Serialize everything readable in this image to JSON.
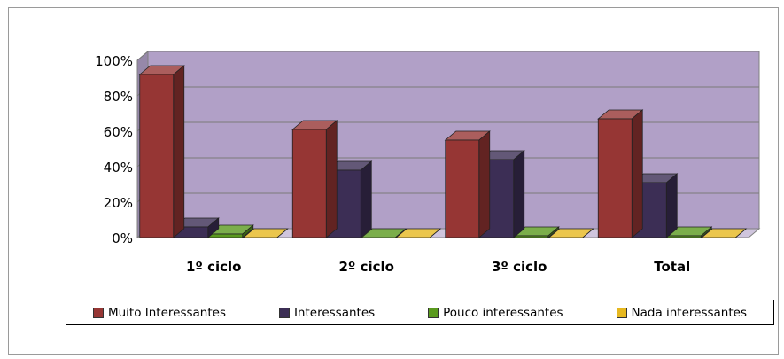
{
  "chart_data": {
    "type": "bar",
    "categories": [
      "1º ciclo",
      "2º ciclo",
      "3º ciclo",
      "Total"
    ],
    "series": [
      {
        "name": "Muito  Interessantes",
        "values": [
          92,
          61,
          55,
          67
        ],
        "color": "#963634"
      },
      {
        "name": "Interessantes",
        "values": [
          6,
          38,
          44,
          31
        ],
        "color": "#3c2e55"
      },
      {
        "name": "Pouco interessantes",
        "values": [
          2,
          0,
          1,
          1
        ],
        "color": "#5a9a1e"
      },
      {
        "name": "Nada interessantes",
        "values": [
          0,
          0,
          0,
          0
        ],
        "color": "#e6b820"
      }
    ],
    "yticks": [
      "100%",
      "80%",
      "60%",
      "40%",
      "20%",
      "0%"
    ],
    "ylim": [
      0,
      100
    ],
    "grid": true,
    "plot_background": "#b1a0c7",
    "legend_position": "bottom"
  }
}
